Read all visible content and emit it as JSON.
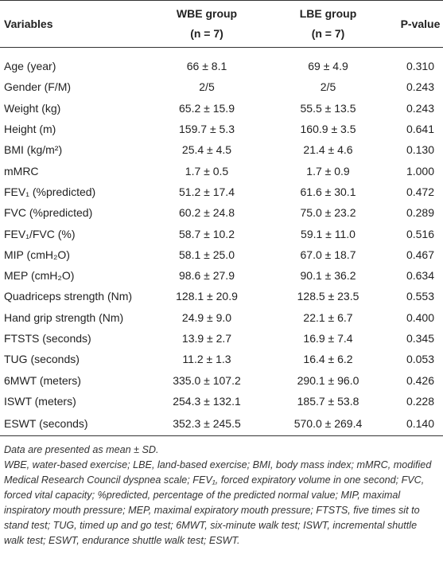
{
  "table": {
    "header": [
      [
        "Variables"
      ],
      [
        "WBE group",
        "(n = 7)"
      ],
      [
        "LBE group",
        "(n = 7)"
      ],
      [
        "P-value"
      ]
    ],
    "rows": [
      [
        "Age (year)",
        "66 ± 8.1",
        "69 ± 4.9",
        "0.310"
      ],
      [
        "Gender (F/M)",
        "2/5",
        "2/5",
        "0.243"
      ],
      [
        "Weight (kg)",
        "65.2 ± 15.9",
        "55.5 ± 13.5",
        "0.243"
      ],
      [
        "Height (m)",
        "159.7 ± 5.3",
        "160.9 ± 3.5",
        "0.641"
      ],
      [
        "BMI (kg/m²)",
        "25.4 ± 4.5",
        "21.4 ± 4.6",
        "0.130"
      ],
      [
        "mMRC",
        "1.7 ± 0.5",
        "1.7 ± 0.9",
        "1.000"
      ],
      [
        "FEV₁ (%predicted)",
        "51.2 ± 17.4",
        "61.6 ± 30.1",
        "0.472"
      ],
      [
        "FVC (%predicted)",
        "60.2 ± 24.8",
        "75.0 ± 23.2",
        "0.289"
      ],
      [
        "FEV₁/FVC (%)",
        "58.7 ± 10.2",
        "59.1 ± 11.0",
        "0.516"
      ],
      [
        "MIP (cmH₂O)",
        "58.1 ± 25.0",
        "67.0 ± 18.7",
        "0.467"
      ],
      [
        "MEP (cmH₂O)",
        "98.6 ± 27.9",
        "90.1 ± 36.2",
        "0.634"
      ],
      [
        "Quadriceps strength (Nm)",
        "128.1 ± 20.9",
        "128.5 ± 23.5",
        "0.553"
      ],
      [
        "Hand grip strength (Nm)",
        "24.9 ± 9.0",
        "22.1 ± 6.7",
        "0.400"
      ],
      [
        "FTSTS (seconds)",
        "13.9 ± 2.7",
        "16.9 ± 7.4",
        "0.345"
      ],
      [
        "TUG (seconds)",
        "11.2 ± 1.3",
        "16.4 ± 6.2",
        "0.053"
      ],
      [
        "6MWT (meters)",
        "335.0 ± 107.2",
        "290.1 ± 96.0",
        "0.426"
      ],
      [
        "ISWT (meters)",
        "254.3 ± 132.1",
        "185.7 ± 53.8",
        "0.228"
      ],
      [
        "ESWT (seconds)",
        "352.3 ± 245.5",
        "570.0 ± 269.4",
        "0.140"
      ]
    ]
  },
  "footnotes": [
    "Data are presented as mean ± SD.",
    "WBE, water-based exercise; LBE, land-based exercise; BMI, body mass index; mMRC, modified Medical Research Council dyspnea scale; FEV₁, forced expiratory volume in one second; FVC, forced vital capacity; %predicted, percentage of the predicted normal value; MIP, maximal inspiratory mouth pressure; MEP, maximal expiratory mouth pressure; FTSTS, five times sit to stand test; TUG, timed up and go test; 6MWT, six-minute walk test; ISWT, incremental shuttle walk test; ESWT, endurance shuttle walk test; ESWT."
  ]
}
